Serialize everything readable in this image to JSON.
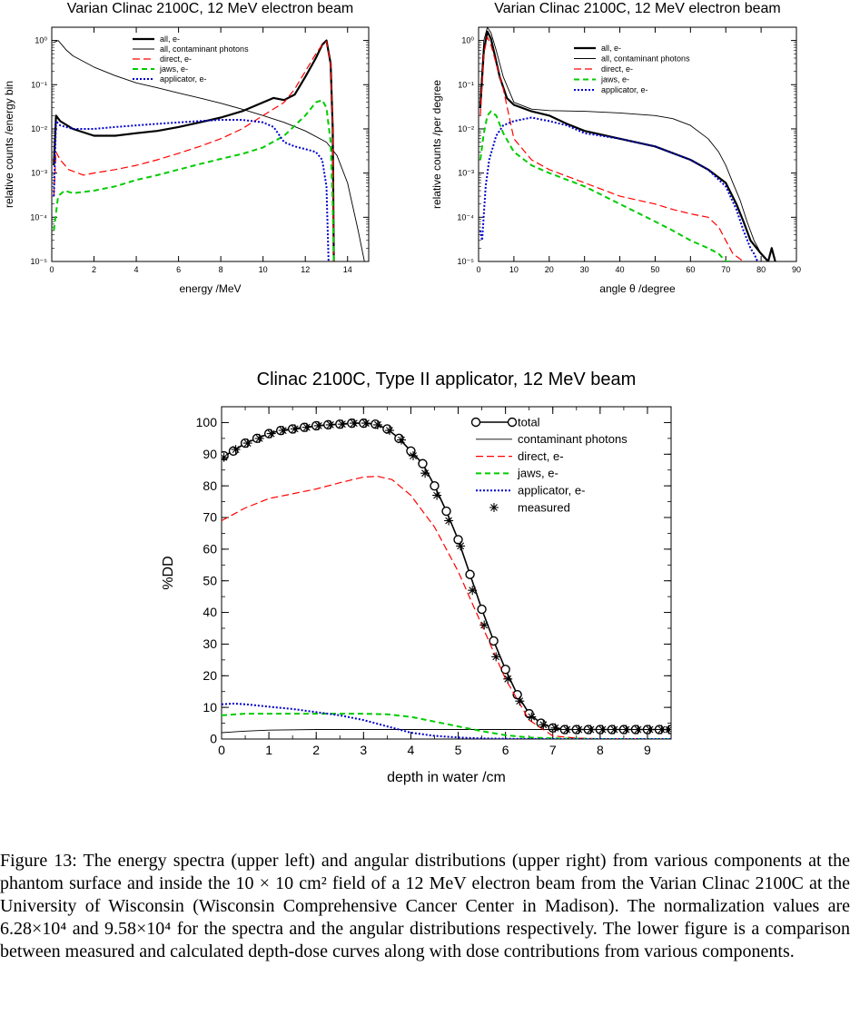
{
  "colors": {
    "black": "#000000",
    "red": "#ff0000",
    "green": "#00cc00",
    "blue": "#0000cc"
  },
  "chart_data": [
    {
      "type": "line",
      "title": "Varian Clinac 2100C, 12 MeV electron beam",
      "xlabel": "energy /MeV",
      "ylabel": "relative counts /energy bin",
      "xlim": [
        0,
        15
      ],
      "ylim_log10": [
        -5,
        0.3
      ],
      "log_y": true,
      "xticks": [
        "0",
        "2",
        "4",
        "6",
        "8",
        "10",
        "12",
        "14"
      ],
      "yticks": [
        "10⁰",
        "10⁻¹",
        "10⁻²",
        "10⁻³",
        "10⁻⁴",
        "10⁻⁵"
      ],
      "legend_position": "top-center",
      "series": [
        {
          "name": "all, e-",
          "style": "black-thick",
          "x": [
            0.1,
            0.2,
            0.4,
            1,
            2,
            3,
            4,
            5,
            6,
            7,
            8,
            9,
            10,
            10.5,
            11,
            11.5,
            12,
            12.5,
            12.8,
            13,
            13.2,
            13.3,
            13.35
          ],
          "y": [
            0.0015,
            0.02,
            0.015,
            0.01,
            0.007,
            0.007,
            0.008,
            0.009,
            0.011,
            0.014,
            0.018,
            0.025,
            0.04,
            0.05,
            0.045,
            0.06,
            0.15,
            0.4,
            0.8,
            1.0,
            0.3,
            0.01,
            1e-05
          ]
        },
        {
          "name": "all, contaminant photons",
          "style": "black-thin",
          "x": [
            0.1,
            0.3,
            0.7,
            1,
            2,
            3,
            4,
            5,
            6,
            7,
            8,
            9,
            10,
            11,
            12,
            13,
            13.5,
            14,
            14.5,
            14.8
          ],
          "y": [
            0.9,
            1.0,
            0.6,
            0.45,
            0.25,
            0.16,
            0.11,
            0.085,
            0.065,
            0.05,
            0.038,
            0.028,
            0.02,
            0.014,
            0.009,
            0.005,
            0.0025,
            0.0006,
            5e-05,
            1e-05
          ]
        },
        {
          "name": "direct, e-",
          "style": "red-dash",
          "x": [
            0.1,
            0.2,
            0.4,
            0.8,
            1.5,
            2,
            3,
            4,
            5,
            6,
            7,
            8,
            9,
            10,
            11,
            11.5,
            12,
            12.5,
            12.8,
            13,
            13.2,
            13.3,
            13.35
          ],
          "y": [
            0.0003,
            0.003,
            0.002,
            0.0012,
            0.0009,
            0.001,
            0.0012,
            0.0015,
            0.002,
            0.0028,
            0.004,
            0.006,
            0.01,
            0.02,
            0.04,
            0.08,
            0.2,
            0.5,
            0.8,
            0.95,
            0.3,
            0.01,
            1e-05
          ]
        },
        {
          "name": "jaws, e-",
          "style": "green-dash",
          "x": [
            0.1,
            0.3,
            0.6,
            1,
            2,
            3,
            4,
            5,
            6,
            7,
            8,
            9,
            10,
            11,
            12,
            12.5,
            12.8,
            13,
            13.2,
            13.3,
            13.35
          ],
          "y": [
            5e-05,
            0.0003,
            0.0004,
            0.00035,
            0.0004,
            0.0005,
            0.0007,
            0.0009,
            0.0012,
            0.0016,
            0.0021,
            0.0027,
            0.0038,
            0.007,
            0.02,
            0.04,
            0.045,
            0.03,
            0.005,
            0.0002,
            1e-05
          ]
        },
        {
          "name": "applicator, e-",
          "style": "blue-dot",
          "x": [
            0.1,
            0.2,
            0.4,
            1,
            2,
            3,
            4,
            5,
            6,
            7,
            8,
            9,
            9.5,
            10,
            10.5,
            11,
            11.5,
            12,
            12.5,
            12.8,
            13,
            13.1
          ],
          "y": [
            0.0003,
            0.015,
            0.012,
            0.01,
            0.01,
            0.011,
            0.012,
            0.013,
            0.014,
            0.015,
            0.016,
            0.016,
            0.015,
            0.014,
            0.011,
            0.005,
            0.004,
            0.0035,
            0.003,
            0.002,
            0.0005,
            1e-05
          ]
        }
      ]
    },
    {
      "type": "line",
      "title": "Varian Clinac 2100C, 12 MeV electron beam",
      "xlabel": "angle θ /degree",
      "ylabel": "relative counts /per degree",
      "xlim": [
        0,
        90
      ],
      "ylim_log10": [
        -5,
        0.3
      ],
      "log_y": true,
      "xticks": [
        "0",
        "10",
        "20",
        "30",
        "40",
        "50",
        "60",
        "70",
        "80",
        "90"
      ],
      "yticks": [
        "10⁰",
        "10⁻¹",
        "10⁻²",
        "10⁻³",
        "10⁻⁴",
        "10⁻⁵"
      ],
      "legend_position": "top-right",
      "series": [
        {
          "name": "all, e-",
          "style": "black-thick",
          "x": [
            0.5,
            1.5,
            2.5,
            3.5,
            4.5,
            6,
            8,
            10,
            15,
            20,
            25,
            30,
            40,
            50,
            60,
            65,
            70,
            73,
            75,
            77,
            80,
            82,
            83,
            84
          ],
          "y": [
            0.03,
            0.6,
            1.6,
            1.1,
            0.5,
            0.15,
            0.05,
            0.035,
            0.025,
            0.02,
            0.013,
            0.009,
            0.006,
            0.004,
            0.002,
            0.0012,
            0.0006,
            0.0002,
            8e-05,
            3e-05,
            1.5e-05,
            1e-05,
            2e-05,
            1e-05
          ]
        },
        {
          "name": "all, contaminant photons",
          "style": "black-thin",
          "x": [
            0.5,
            1.5,
            2.5,
            3.5,
            5,
            7,
            10,
            15,
            20,
            30,
            40,
            50,
            55,
            60,
            65,
            68,
            70,
            72,
            74,
            76,
            78,
            80,
            82
          ],
          "y": [
            0.05,
            1.0,
            2.0,
            1.5,
            0.6,
            0.15,
            0.04,
            0.028,
            0.026,
            0.025,
            0.023,
            0.02,
            0.017,
            0.012,
            0.006,
            0.003,
            0.0015,
            0.0006,
            0.00025,
            8e-05,
            3e-05,
            1.5e-05,
            1e-05
          ]
        },
        {
          "name": "direct, e-",
          "style": "red-dash",
          "x": [
            0.5,
            1.5,
            2.5,
            3.5,
            5,
            7,
            10,
            15,
            20,
            30,
            40,
            50,
            55,
            60,
            65,
            68,
            70,
            72,
            75
          ],
          "y": [
            0.02,
            0.5,
            1.2,
            0.8,
            0.3,
            0.08,
            0.006,
            0.002,
            0.0012,
            0.0006,
            0.0003,
            0.0002,
            0.00015,
            0.00012,
            0.0001,
            6e-05,
            3e-05,
            1.5e-05,
            1e-05
          ]
        },
        {
          "name": "jaws, e-",
          "style": "green-dash",
          "x": [
            0.5,
            1.5,
            2.5,
            3.5,
            5,
            7,
            10,
            15,
            20,
            30,
            40,
            50,
            55,
            60,
            65,
            68,
            70,
            72
          ],
          "y": [
            0.002,
            0.008,
            0.02,
            0.025,
            0.02,
            0.008,
            0.003,
            0.0015,
            0.001,
            0.0005,
            0.0002,
            8e-05,
            5e-05,
            3e-05,
            2e-05,
            1.5e-05,
            1e-05,
            1e-05
          ]
        },
        {
          "name": "applicator, e-",
          "style": "blue-dot",
          "x": [
            0.5,
            1,
            2,
            3,
            5,
            7,
            10,
            15,
            20,
            25,
            30,
            40,
            50,
            60,
            65,
            70,
            73,
            75,
            77,
            78,
            79
          ],
          "y": [
            5e-05,
            3e-05,
            0.0005,
            0.002,
            0.007,
            0.012,
            0.015,
            0.018,
            0.015,
            0.012,
            0.008,
            0.006,
            0.004,
            0.002,
            0.0012,
            0.0005,
            0.00015,
            5e-05,
            2e-05,
            1.5e-05,
            1e-05
          ]
        }
      ]
    },
    {
      "type": "line",
      "title": "Clinac 2100C, Type II applicator, 12 MeV beam",
      "xlabel": "depth in water /cm",
      "ylabel": "%DD",
      "xlim": [
        0,
        9.5
      ],
      "ylim": [
        0,
        105
      ],
      "xticks": [
        "0",
        "1",
        "2",
        "3",
        "4",
        "5",
        "6",
        "7",
        "8",
        "9"
      ],
      "yticks": [
        "0",
        "10",
        "20",
        "30",
        "40",
        "50",
        "60",
        "70",
        "80",
        "90",
        "100"
      ],
      "legend_position": "top-right",
      "series": [
        {
          "name": "total",
          "style": "black-circles",
          "x": [
            0.05,
            0.25,
            0.5,
            0.75,
            1,
            1.25,
            1.5,
            1.75,
            2,
            2.25,
            2.5,
            2.75,
            3,
            3.25,
            3.5,
            3.75,
            4,
            4.25,
            4.5,
            4.75,
            5,
            5.25,
            5.5,
            5.75,
            6,
            6.25,
            6.5,
            6.75,
            7,
            7.25,
            7.5,
            7.75,
            8,
            8.25,
            8.5,
            8.75,
            9,
            9.25,
            9.5
          ],
          "y": [
            89.5,
            91,
            93.5,
            95,
            96.5,
            97.5,
            98,
            98.5,
            99,
            99.3,
            99.5,
            99.8,
            99.8,
            99.5,
            98,
            95,
            91,
            87,
            80,
            72,
            63,
            52,
            41,
            31,
            22,
            14,
            8,
            5,
            3.5,
            3,
            3,
            3,
            3,
            3,
            3,
            3,
            3,
            3,
            3
          ]
        },
        {
          "name": "contaminant photons",
          "style": "black-thin",
          "x": [
            0,
            0.5,
            1,
            2,
            3,
            4,
            5,
            6,
            7,
            8,
            9,
            9.5
          ],
          "y": [
            2,
            2.5,
            2.8,
            3,
            3,
            3,
            3,
            3,
            3,
            3,
            3,
            3
          ]
        },
        {
          "name": "direct, e-",
          "style": "red-dash",
          "x": [
            0,
            0.5,
            1,
            1.5,
            2,
            2.5,
            3,
            3.3,
            3.6,
            4,
            4.5,
            5,
            5.5,
            6,
            6.5,
            7,
            7.5,
            8,
            9,
            9.5
          ],
          "y": [
            69,
            73,
            76,
            77.5,
            79,
            81,
            82.8,
            83,
            82,
            77,
            67,
            53,
            36,
            19,
            6,
            1,
            0.3,
            0.1,
            0,
            0
          ]
        },
        {
          "name": "jaws, e-",
          "style": "green-dash",
          "x": [
            0,
            0.5,
            1,
            1.5,
            2,
            2.5,
            3,
            3.5,
            4,
            4.5,
            5,
            5.5,
            6,
            6.5,
            7,
            8,
            9,
            9.5
          ],
          "y": [
            7.5,
            8,
            8,
            8,
            8,
            8,
            8,
            7.8,
            7,
            5.5,
            4,
            2.5,
            1.2,
            0.5,
            0.2,
            0,
            0,
            0
          ]
        },
        {
          "name": "applicator, e-",
          "style": "blue-dot",
          "x": [
            0,
            0.25,
            0.5,
            1,
            1.5,
            2,
            2.5,
            3,
            3.5,
            4,
            4.5,
            5,
            5.5,
            6,
            6.5,
            7,
            8,
            9.5
          ],
          "y": [
            11,
            11.2,
            11,
            10.2,
            9.5,
            8.5,
            7.5,
            6,
            4,
            2,
            1,
            0.5,
            0.2,
            0.1,
            0,
            0,
            0,
            0
          ]
        },
        {
          "name": "measured",
          "style": "black-asterisk",
          "x": [
            0.05,
            0.3,
            0.55,
            0.8,
            1.05,
            1.3,
            1.55,
            1.8,
            2.05,
            2.3,
            2.55,
            2.8,
            3.05,
            3.3,
            3.55,
            3.8,
            4.05,
            4.3,
            4.55,
            4.8,
            5.05,
            5.3,
            5.55,
            5.8,
            6.05,
            6.3,
            6.55,
            6.8,
            7.05,
            7.3,
            7.55,
            7.8,
            8.05,
            8.3,
            8.55,
            8.8,
            9.05,
            9.3,
            9.45
          ],
          "y": [
            89,
            91.5,
            93.5,
            95,
            96.5,
            97.5,
            98,
            98.5,
            99,
            99.3,
            99.5,
            99.8,
            99.8,
            99.3,
            97.5,
            94.5,
            89.5,
            84,
            77,
            69,
            61,
            47,
            36,
            26,
            19,
            12,
            7,
            4.5,
            3.5,
            3,
            3,
            3,
            3,
            3,
            3,
            3,
            3,
            3,
            3
          ]
        }
      ]
    }
  ],
  "caption": "Figure 13: The energy spectra (upper left) and angular distributions (upper right) from various components at the phantom surface and inside the 10 × 10 cm² field of a 12 MeV electron beam from the Varian Clinac 2100C at the University of Wisconsin (Wisconsin Comprehensive Cancer Center in Madison). The normalization values are 6.28×10⁴ and 9.58×10⁴ for the spectra and the angular distributions respectively. The lower figure is a comparison between measured and calculated depth-dose curves along with dose contributions from various components."
}
